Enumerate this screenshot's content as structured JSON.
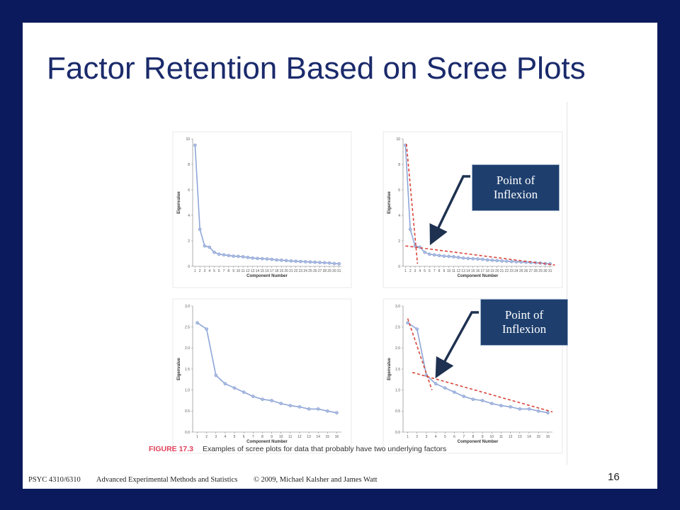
{
  "title": "Factor Retention Based on Scree Plots",
  "caption": {
    "label": "FIGURE 17.3",
    "text": "Examples of scree plots for data that probably have two underlying factors"
  },
  "footer": {
    "course": "PSYC 4310/6310",
    "course_title": "Advanced Experimental Methods and Statistics",
    "copyright": "© 2009, Michael Kalsher and James Watt"
  },
  "page_number": "16",
  "callouts": [
    {
      "line1": "Point of",
      "line2": "Inflexion"
    },
    {
      "line1": "Point of",
      "line2": "Inflexion"
    }
  ],
  "colors": {
    "line": "#8ea6d8",
    "point": "#a9bbe3",
    "fit_line": "#d9443a",
    "arrow": "#1e3150",
    "callout_bg": "#1e3f6e",
    "caption_label": "#e0405a",
    "frame": "#0b1a5c",
    "title": "#1a2a6b"
  },
  "chart_data": [
    {
      "type": "line",
      "xlabel": "Component Number",
      "ylabel": "Eigenvalue",
      "x": [
        1,
        2,
        3,
        4,
        5,
        6,
        7,
        8,
        9,
        10,
        11,
        12,
        13,
        14,
        15,
        16,
        17,
        18,
        19,
        20,
        21,
        22,
        23,
        24,
        25,
        26,
        27,
        28,
        29,
        30,
        31
      ],
      "values": [
        9.5,
        2.9,
        1.6,
        1.5,
        1.1,
        0.95,
        0.9,
        0.85,
        0.8,
        0.78,
        0.75,
        0.7,
        0.65,
        0.62,
        0.6,
        0.58,
        0.55,
        0.5,
        0.48,
        0.45,
        0.42,
        0.4,
        0.38,
        0.36,
        0.34,
        0.32,
        0.3,
        0.28,
        0.26,
        0.22,
        0.2
      ],
      "yticks": [
        "0",
        "2",
        "4",
        "6",
        "8",
        "10"
      ],
      "ylim": [
        0,
        10
      ],
      "xlim": [
        0.5,
        31.5
      ],
      "grid": false
    },
    {
      "type": "line",
      "xlabel": "Component Number",
      "ylabel": "Eigenvalue",
      "x": [
        1,
        2,
        3,
        4,
        5,
        6,
        7,
        8,
        9,
        10,
        11,
        12,
        13,
        14,
        15,
        16,
        17,
        18,
        19,
        20,
        21,
        22,
        23,
        24,
        25,
        26,
        27,
        28,
        29,
        30,
        31
      ],
      "values": [
        9.5,
        2.9,
        1.6,
        1.5,
        1.1,
        0.95,
        0.9,
        0.85,
        0.8,
        0.78,
        0.75,
        0.7,
        0.65,
        0.62,
        0.6,
        0.58,
        0.55,
        0.5,
        0.48,
        0.45,
        0.42,
        0.4,
        0.38,
        0.36,
        0.34,
        0.32,
        0.3,
        0.28,
        0.26,
        0.22,
        0.2
      ],
      "yticks": [
        "0",
        "2",
        "4",
        "6",
        "8",
        "10"
      ],
      "ylim": [
        0,
        10
      ],
      "xlim": [
        0.5,
        31.5
      ],
      "grid": false,
      "fit_lines": [
        {
          "from": [
            1.2,
            9.6
          ],
          "to": [
            3.5,
            0.2
          ]
        },
        {
          "from": [
            1,
            1.6
          ],
          "to": [
            32,
            0.1
          ]
        }
      ]
    },
    {
      "type": "line",
      "xlabel": "Component Number",
      "ylabel": "Eigenvalue",
      "x": [
        1,
        2,
        3,
        4,
        5,
        6,
        7,
        8,
        9,
        10,
        11,
        12,
        13,
        14,
        15,
        16
      ],
      "values": [
        2.6,
        2.45,
        1.35,
        1.15,
        1.05,
        0.95,
        0.85,
        0.78,
        0.75,
        0.68,
        0.63,
        0.6,
        0.55,
        0.55,
        0.5,
        0.46
      ],
      "yticks": [
        "0.0",
        "0.5",
        "1.0",
        "1.5",
        "2.0",
        "2.5",
        "3.0"
      ],
      "ylim": [
        0,
        3
      ],
      "xlim": [
        0.5,
        16.5
      ],
      "grid": false
    },
    {
      "type": "line",
      "xlabel": "Component Number",
      "ylabel": "Eigenvalue",
      "x": [
        1,
        2,
        3,
        4,
        5,
        6,
        7,
        8,
        9,
        10,
        11,
        12,
        13,
        14,
        15,
        16
      ],
      "values": [
        2.6,
        2.45,
        1.35,
        1.15,
        1.05,
        0.95,
        0.85,
        0.78,
        0.75,
        0.68,
        0.63,
        0.6,
        0.55,
        0.55,
        0.5,
        0.46
      ],
      "yticks": [
        "0.0",
        "0.5",
        "1.0",
        "1.5",
        "2.0",
        "2.5",
        "3.0"
      ],
      "ylim": [
        0,
        3
      ],
      "xlim": [
        0.5,
        16.5
      ],
      "grid": false,
      "fit_lines": [
        {
          "from": [
            1,
            2.7
          ],
          "to": [
            3.6,
            1.0
          ]
        },
        {
          "from": [
            1.5,
            1.42
          ],
          "to": [
            16.5,
            0.48
          ]
        }
      ]
    }
  ]
}
